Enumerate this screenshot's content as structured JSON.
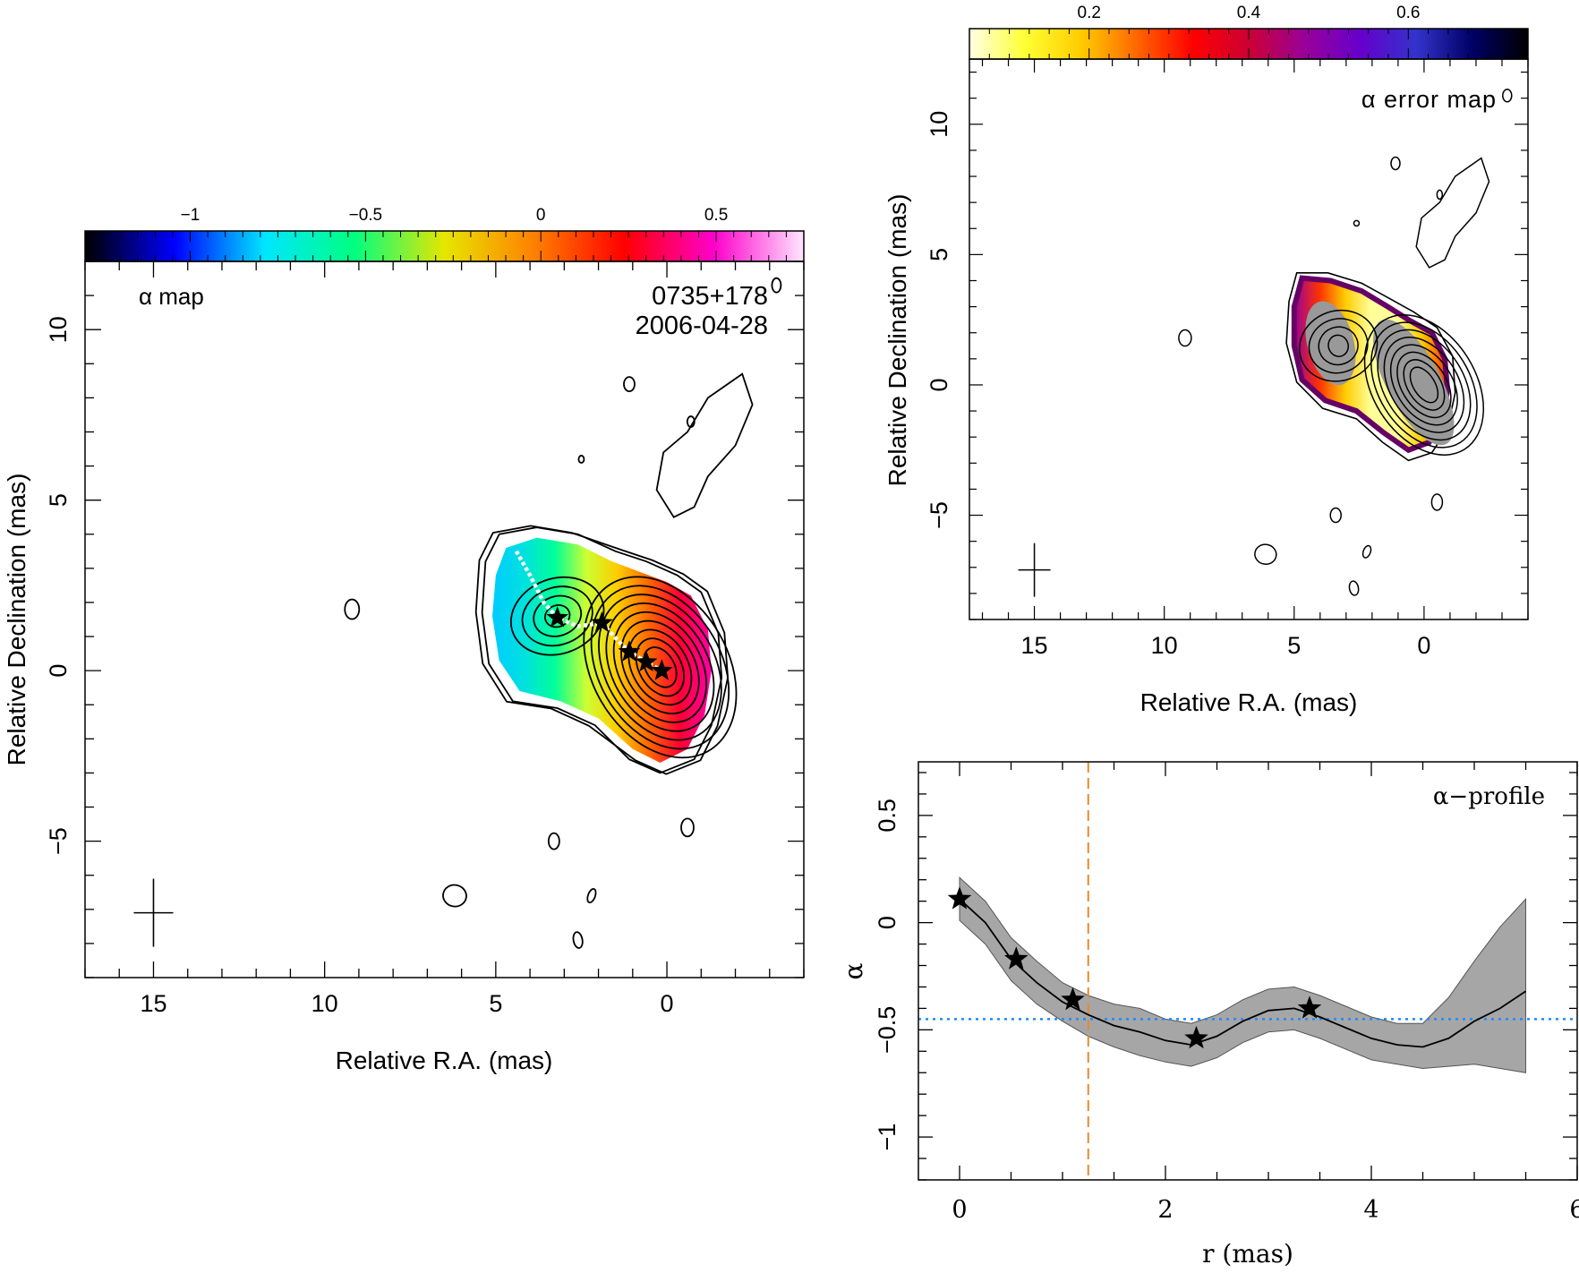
{
  "chart_data": [
    {
      "type": "heatmap",
      "panel": "alpha-map",
      "label_text": "α map",
      "source_name": "0735+178",
      "date": "2006-04-28",
      "xlabel": "Relative R.A. (mas)",
      "ylabel": "Relative Declination (mas)",
      "xlim": [
        17,
        -4
      ],
      "ylim": [
        -9,
        12
      ],
      "x_ticks": [
        15,
        10,
        5,
        0
      ],
      "y_ticks": [
        -5,
        0,
        5,
        10
      ],
      "colorbar": {
        "range": [
          -1.3,
          0.75
        ],
        "ticks": [
          -1,
          -0.5,
          0,
          0.5
        ],
        "tick_labels": [
          "−1",
          "−0.5",
          "0",
          "0.5"
        ],
        "colors": [
          "#000000",
          "#0000ff",
          "#00e5ff",
          "#00ff80",
          "#e6e600",
          "#ff8000",
          "#ff0000",
          "#ff00cc",
          "#ffe6ff"
        ]
      },
      "ridge_stars": [
        {
          "x": 3.2,
          "y": 1.55
        },
        {
          "x": 1.9,
          "y": 1.4
        },
        {
          "x": 1.1,
          "y": 0.55
        },
        {
          "x": 0.6,
          "y": 0.25
        },
        {
          "x": 0.15,
          "y": 0.0
        }
      ],
      "ridge_line": [
        [
          4.4,
          3.5
        ],
        [
          4.0,
          2.8
        ],
        [
          3.6,
          2.0
        ],
        [
          3.2,
          1.55
        ],
        [
          2.6,
          1.3
        ],
        [
          1.9,
          1.4
        ],
        [
          1.4,
          0.85
        ],
        [
          1.1,
          0.55
        ],
        [
          0.6,
          0.25
        ],
        [
          0.15,
          0.0
        ]
      ],
      "beam": {
        "x": 15,
        "y": -7.1
      }
    },
    {
      "type": "heatmap",
      "panel": "alpha-error-map",
      "label_text": "α error map",
      "xlabel": "Relative R.A. (mas)",
      "ylabel": "Relative Declination (mas)",
      "xlim": [
        17.5,
        -4
      ],
      "ylim": [
        -9,
        12.5
      ],
      "x_ticks": [
        15,
        10,
        5,
        0
      ],
      "y_ticks": [
        -5,
        0,
        5,
        10
      ],
      "colorbar": {
        "range": [
          0.05,
          0.75
        ],
        "ticks": [
          0.2,
          0.4,
          0.6
        ],
        "tick_labels": [
          "0.2",
          "0.4",
          "0.6"
        ],
        "colors": [
          "#ffffe6",
          "#ffff33",
          "#ffcc00",
          "#ff6600",
          "#ff0000",
          "#cc0033",
          "#990099",
          "#6600cc",
          "#3333cc",
          "#000066",
          "#000000"
        ]
      },
      "beam": {
        "x": 15,
        "y": -7.1
      }
    },
    {
      "type": "line",
      "panel": "alpha-profile",
      "label_text": "α−profile",
      "xlabel": "r (mas)",
      "ylabel": "α",
      "xlim": [
        -0.4,
        6.0
      ],
      "ylim": [
        -1.2,
        0.75
      ],
      "x_ticks": [
        0,
        2,
        4,
        6
      ],
      "y_ticks": [
        -1,
        -0.5,
        0,
        0.5
      ],
      "y_tick_labels": [
        "−1",
        "−0.5",
        "0",
        "0.5"
      ],
      "series": [
        {
          "x": [
            0,
            0.25,
            0.5,
            0.75,
            1.0,
            1.25,
            1.5,
            1.75,
            2.0,
            2.25,
            2.5,
            2.75,
            3.0,
            3.25,
            3.5,
            3.75,
            4.0,
            4.25,
            4.5,
            4.75,
            5.0,
            5.25,
            5.5
          ],
          "y": [
            0.11,
            0.0,
            -0.17,
            -0.28,
            -0.37,
            -0.43,
            -0.48,
            -0.51,
            -0.55,
            -0.57,
            -0.53,
            -0.46,
            -0.41,
            -0.4,
            -0.44,
            -0.49,
            -0.54,
            -0.57,
            -0.58,
            -0.54,
            -0.46,
            -0.4,
            -0.32
          ],
          "y_low": [
            0.01,
            -0.1,
            -0.27,
            -0.38,
            -0.46,
            -0.53,
            -0.58,
            -0.62,
            -0.65,
            -0.67,
            -0.63,
            -0.56,
            -0.51,
            -0.5,
            -0.54,
            -0.59,
            -0.64,
            -0.66,
            -0.68,
            -0.67,
            -0.66,
            -0.68,
            -0.7
          ],
          "y_high": [
            0.21,
            0.1,
            -0.07,
            -0.18,
            -0.28,
            -0.34,
            -0.38,
            -0.4,
            -0.45,
            -0.47,
            -0.43,
            -0.36,
            -0.31,
            -0.3,
            -0.34,
            -0.39,
            -0.44,
            -0.47,
            -0.47,
            -0.35,
            -0.18,
            -0.02,
            0.11
          ]
        }
      ],
      "stars": [
        {
          "x": 0.0,
          "y": 0.11
        },
        {
          "x": 0.55,
          "y": -0.17
        },
        {
          "x": 1.1,
          "y": -0.36
        },
        {
          "x": 2.3,
          "y": -0.54
        },
        {
          "x": 3.4,
          "y": -0.4
        }
      ],
      "hline": -0.45,
      "vline": 1.25
    }
  ]
}
